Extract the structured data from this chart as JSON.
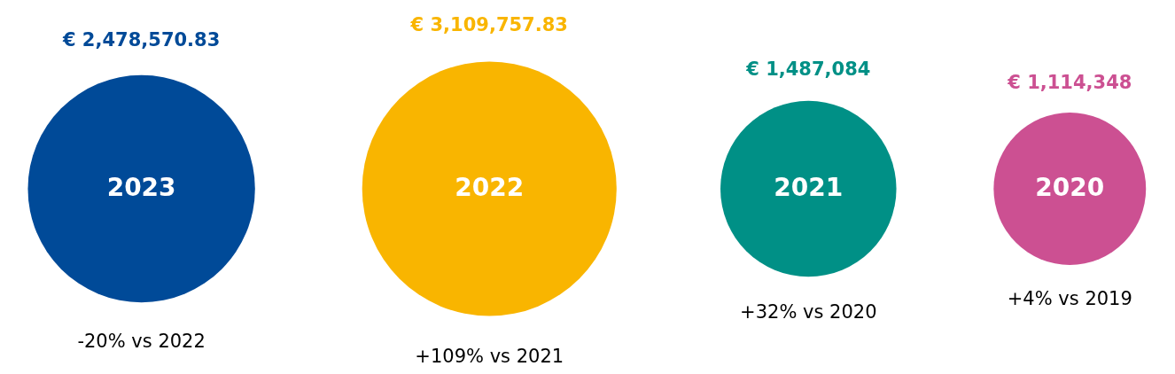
{
  "chart_data": {
    "type": "other",
    "categories": [
      "2023",
      "2022",
      "2021",
      "2020"
    ],
    "values": [
      2478570.83,
      3109757.83,
      1487084,
      1114348
    ],
    "value_labels": [
      "€ 2,478,570.83",
      "€ 3,109,757.83",
      "€ 1,487,084",
      "€ 1,114,348"
    ],
    "colors": [
      "#004a98",
      "#f9b500",
      "#009086",
      "#cc5092"
    ],
    "annotations": [
      "-20% vs 2022",
      "+109% vs 2021",
      "+32% vs 2020",
      "+4% vs 2019"
    ]
  }
}
